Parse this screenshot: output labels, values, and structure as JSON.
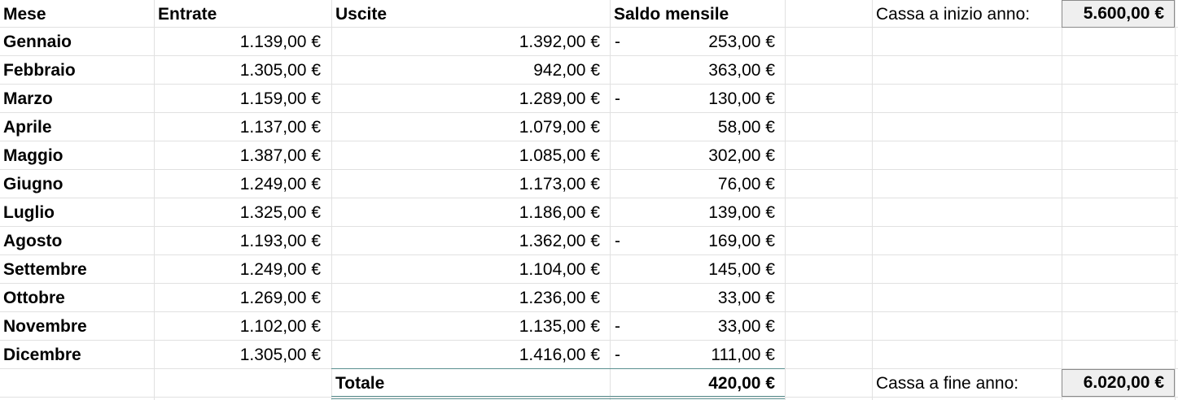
{
  "headers": {
    "mese": "Mese",
    "entrate": "Entrate",
    "uscite": "Uscite",
    "saldo": "Saldo mensile"
  },
  "rows": [
    {
      "mese": "Gennaio",
      "entrate": "1.139,00 €",
      "uscite": "1.392,00 €",
      "saldo_sign": "-",
      "saldo": "253,00 €"
    },
    {
      "mese": "Febbraio",
      "entrate": "1.305,00 €",
      "uscite": "942,00 €",
      "saldo_sign": "",
      "saldo": "363,00 €"
    },
    {
      "mese": "Marzo",
      "entrate": "1.159,00 €",
      "uscite": "1.289,00 €",
      "saldo_sign": "-",
      "saldo": "130,00 €"
    },
    {
      "mese": "Aprile",
      "entrate": "1.137,00 €",
      "uscite": "1.079,00 €",
      "saldo_sign": "",
      "saldo": "58,00 €"
    },
    {
      "mese": "Maggio",
      "entrate": "1.387,00 €",
      "uscite": "1.085,00 €",
      "saldo_sign": "",
      "saldo": "302,00 €"
    },
    {
      "mese": "Giugno",
      "entrate": "1.249,00 €",
      "uscite": "1.173,00 €",
      "saldo_sign": "",
      "saldo": "76,00 €"
    },
    {
      "mese": "Luglio",
      "entrate": "1.325,00 €",
      "uscite": "1.186,00 €",
      "saldo_sign": "",
      "saldo": "139,00 €"
    },
    {
      "mese": "Agosto",
      "entrate": "1.193,00 €",
      "uscite": "1.362,00 €",
      "saldo_sign": "-",
      "saldo": "169,00 €"
    },
    {
      "mese": "Settembre",
      "entrate": "1.249,00 €",
      "uscite": "1.104,00 €",
      "saldo_sign": "",
      "saldo": "145,00 €"
    },
    {
      "mese": "Ottobre",
      "entrate": "1.269,00 €",
      "uscite": "1.236,00 €",
      "saldo_sign": "",
      "saldo": "33,00 €"
    },
    {
      "mese": "Novembre",
      "entrate": "1.102,00 €",
      "uscite": "1.135,00 €",
      "saldo_sign": "-",
      "saldo": "33,00 €"
    },
    {
      "mese": "Dicembre",
      "entrate": "1.305,00 €",
      "uscite": "1.416,00 €",
      "saldo_sign": "-",
      "saldo": "111,00 €"
    }
  ],
  "totale": {
    "label": "Totale",
    "value": "420,00 €"
  },
  "cassa_inizio": {
    "label": "Cassa a inizio anno:",
    "value": "5.600,00 €"
  },
  "cassa_fine": {
    "label": "Cassa a fine anno:",
    "value": "6.020,00 €"
  }
}
